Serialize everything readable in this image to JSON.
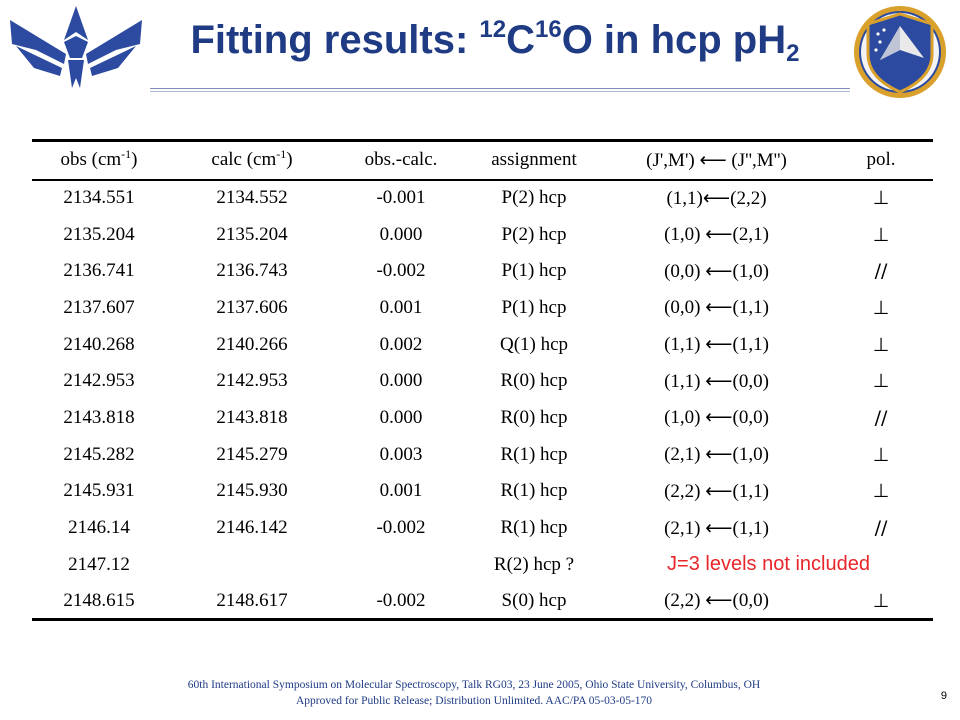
{
  "title": {
    "prefix": "Fitting results: ",
    "iso1": "12",
    "el1": "C",
    "iso2": "16",
    "el2": "O in hcp pH",
    "sub": "2"
  },
  "table": {
    "headers": {
      "obs": "obs (cm",
      "obs_sup": "-1",
      "obs_end": ")",
      "calc": "calc (cm",
      "calc_sup": "-1",
      "calc_end": ")",
      "diff": "obs.-calc.",
      "assign": "assignment",
      "jm": "(J',M') ⟵ (J'',M'')",
      "pol": "pol."
    },
    "rows": [
      [
        "2134.551",
        "2134.552",
        "-0.001",
        "P(2) hcp",
        "(1,1)⟵(2,2)",
        "⊥"
      ],
      [
        "2135.204",
        "2135.204",
        "0.000",
        "P(2) hcp",
        "(1,0) ⟵(2,1)",
        "⊥"
      ],
      [
        "2136.741",
        "2136.743",
        "-0.002",
        "P(1) hcp",
        "(0,0) ⟵(1,0)",
        "//"
      ],
      [
        "2137.607",
        "2137.606",
        "0.001",
        "P(1) hcp",
        "(0,0) ⟵(1,1)",
        "⊥"
      ],
      [
        "2140.268",
        "2140.266",
        "0.002",
        "Q(1) hcp",
        "(1,1) ⟵(1,1)",
        "⊥"
      ],
      [
        "2142.953",
        "2142.953",
        "0.000",
        "R(0) hcp",
        "(1,1) ⟵(0,0)",
        "⊥"
      ],
      [
        "2143.818",
        "2143.818",
        "0.000",
        "R(0) hcp",
        "(1,0) ⟵(0,0)",
        "//"
      ],
      [
        "2145.282",
        "2145.279",
        "0.003",
        "R(1) hcp",
        "(2,1) ⟵(1,0)",
        "⊥"
      ],
      [
        "2145.931",
        "2145.930",
        "0.001",
        "R(1) hcp",
        "(2,2) ⟵(1,1)",
        "⊥"
      ],
      [
        "2146.14",
        "2146.142",
        "-0.002",
        "R(1) hcp",
        "(2,1) ⟵(1,1)",
        "//"
      ],
      [
        "2147.12",
        "",
        "",
        "R(2) hcp ?",
        "J=3 levels not included",
        ""
      ],
      [
        "2148.615",
        "2148.617",
        "-0.002",
        "S(0) hcp",
        "(2,2) ⟵(0,0)",
        "⊥"
      ]
    ],
    "note_row_index": 10
  },
  "footer": {
    "line1": "60th International Symposium on Molecular Spectroscopy, Talk RG03, 23 June 2005, Ohio State University,  Columbus, OH",
    "line2": "Approved for Public Release; Distribution Unlimited.   AAC/PA 05-03-05-170"
  },
  "page_number": "9",
  "logos": {
    "left": "air-force-wings-logo",
    "right": "afrl-emblem",
    "right_text": "AIR FORCE RESEARCH LABORATORY"
  },
  "colors": {
    "title": "#1f3b84",
    "note": "#e8252a",
    "footer": "#1f3b84",
    "logo_blue": "#2b4aa0",
    "emblem_gold": "#d9a12b"
  }
}
